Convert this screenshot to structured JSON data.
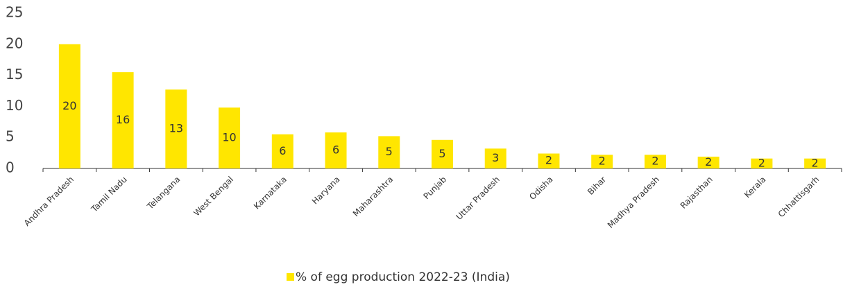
{
  "chart_data": {
    "type": "bar",
    "categories": [
      "Andhra Pradesh",
      "Tamil Nadu",
      "Telangana",
      "West Bengal",
      "Karnataka",
      "Haryana",
      "Maharashtra",
      "Punjab",
      "Uttar Pradesh",
      "Odisha",
      "Bihar",
      "Madhya Pradesh",
      "Rajasthan",
      "Kerala",
      "Chhattisgarh"
    ],
    "series": [
      {
        "name": "% of egg production 2022-23 (India)",
        "color": "#ffe600",
        "values": [
          20.0,
          15.5,
          12.7,
          9.8,
          5.5,
          5.8,
          5.2,
          4.6,
          3.2,
          2.4,
          2.2,
          2.2,
          1.9,
          1.6,
          1.6
        ],
        "value_labels": [
          "20",
          "16",
          "13",
          "10",
          "6",
          "6",
          "5",
          "5",
          "3",
          "2",
          "2",
          "2",
          "2",
          "2",
          "2"
        ]
      }
    ],
    "ylim": [
      0,
      25
    ],
    "yticks": [
      0,
      5,
      10,
      15,
      20,
      25
    ],
    "grid": false,
    "legend": "bottom"
  }
}
